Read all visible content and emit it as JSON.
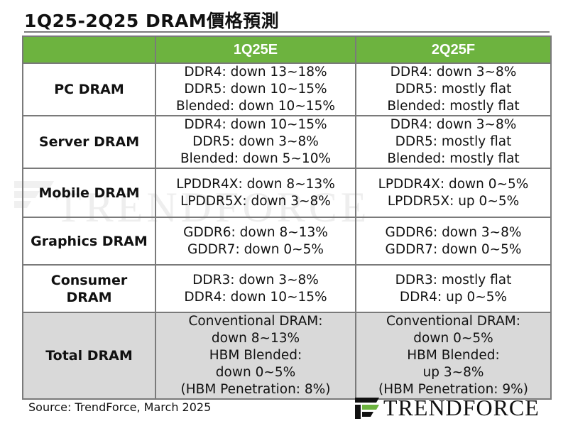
{
  "title": "1Q25-2Q25 DRAM價格預測",
  "columns": [
    "",
    "1Q25E",
    "2Q25F"
  ],
  "rows": [
    {
      "label_lines": [
        "PC DRAM"
      ],
      "q1": [
        "DDR4: down 13~18%",
        "DDR5: down 10~15%",
        "Blended: down 10~15%"
      ],
      "q2": [
        "DDR4: down 3~8%",
        "DDR5: mostly flat",
        "Blended: mostly flat"
      ]
    },
    {
      "label_lines": [
        "Server DRAM"
      ],
      "q1": [
        "DDR4: down 10~15%",
        "DDR5: down 3~8%",
        "Blended: down 5~10%"
      ],
      "q2": [
        "DDR4: down 3~8%",
        "DDR5: mostly flat",
        "Blended: mostly flat"
      ]
    },
    {
      "label_lines": [
        "Mobile DRAM"
      ],
      "q1": [
        "LPDDR4X: down 8~13%",
        "LPDDR5X: down 3~8%"
      ],
      "q2": [
        "LPDDR4X: down 0~5%",
        "LPDDR5X: up 0~5%"
      ]
    },
    {
      "label_lines": [
        "Graphics DRAM"
      ],
      "q1": [
        "GDDR6: down 8~13%",
        "GDDR7: down 0~5%"
      ],
      "q2": [
        "GDDR6: down 3~8%",
        "GDDR7: down 0~5%"
      ]
    },
    {
      "label_lines": [
        "Consumer",
        "DRAM"
      ],
      "q1": [
        "DDR3: down 3~8%",
        "DDR4: down 10~15%"
      ],
      "q2": [
        "DDR3: mostly flat",
        "DDR4: up 0~5%"
      ]
    },
    {
      "label_lines": [
        "Total DRAM"
      ],
      "q1": [
        "Conventional DRAM:",
        "down 8~13%",
        "HBM Blended:",
        "down 0~5%",
        "(HBM Penetration: 8%)"
      ],
      "q2": [
        "Conventional DRAM:",
        "down 0~5%",
        "HBM Blended:",
        "up 3~8%",
        "(HBM Penetration: 9%)"
      ]
    }
  ],
  "watermark": "TRENDFORCE",
  "source": "Source: TrendForce, March 2025",
  "brand": "TRENDFORCE",
  "colors": {
    "header": "#6db33f",
    "total_row": "#d9d9d9",
    "border": "#7a7a7a"
  }
}
